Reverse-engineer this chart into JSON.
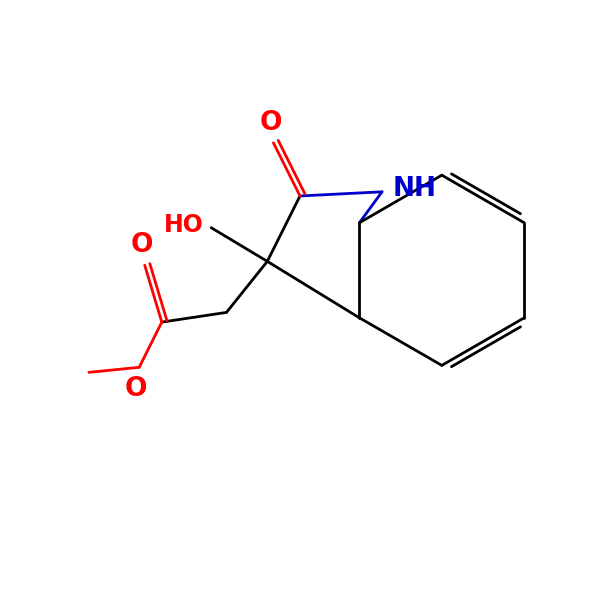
{
  "background": "#ffffff",
  "bond_color": "#000000",
  "o_color": "#ff0000",
  "n_color": "#0000cc",
  "lw": 2.0,
  "fs": 16,
  "figsize": [
    6.0,
    6.0
  ],
  "dpi": 100,
  "xlim": [
    -1.0,
    9.0
  ],
  "ylim": [
    -0.5,
    9.5
  ]
}
